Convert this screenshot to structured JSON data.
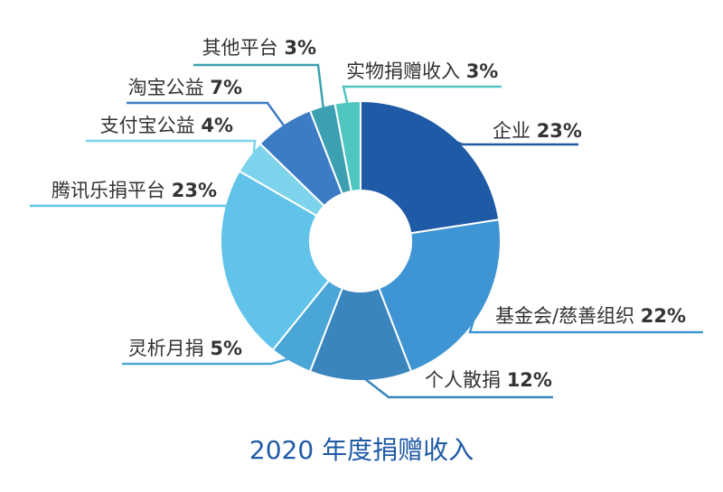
{
  "chart_data": {
    "type": "pie",
    "title": "2020 年度捐赠收入",
    "unit": "%",
    "slices": [
      {
        "label": "企业",
        "value": 23,
        "color": "#1f5aa6"
      },
      {
        "label": "基金会/慈善组织",
        "value": 22,
        "color": "#3f95d3"
      },
      {
        "label": "个人散捐",
        "value": 12,
        "color": "#3a85be"
      },
      {
        "label": "灵析月捐",
        "value": 5,
        "color": "#4aa6d6"
      },
      {
        "label": "腾讯乐捐平台",
        "value": 23,
        "color": "#62c3ea"
      },
      {
        "label": "支付宝公益",
        "value": 4,
        "color": "#7dd3ec"
      },
      {
        "label": "淘宝公益",
        "value": 7,
        "color": "#3c7cc4"
      },
      {
        "label": "其他平台",
        "value": 3,
        "color": "#3da0b0"
      },
      {
        "label": "实物捐赠收入",
        "value": 3,
        "color": "#4fc6c0"
      }
    ]
  }
}
